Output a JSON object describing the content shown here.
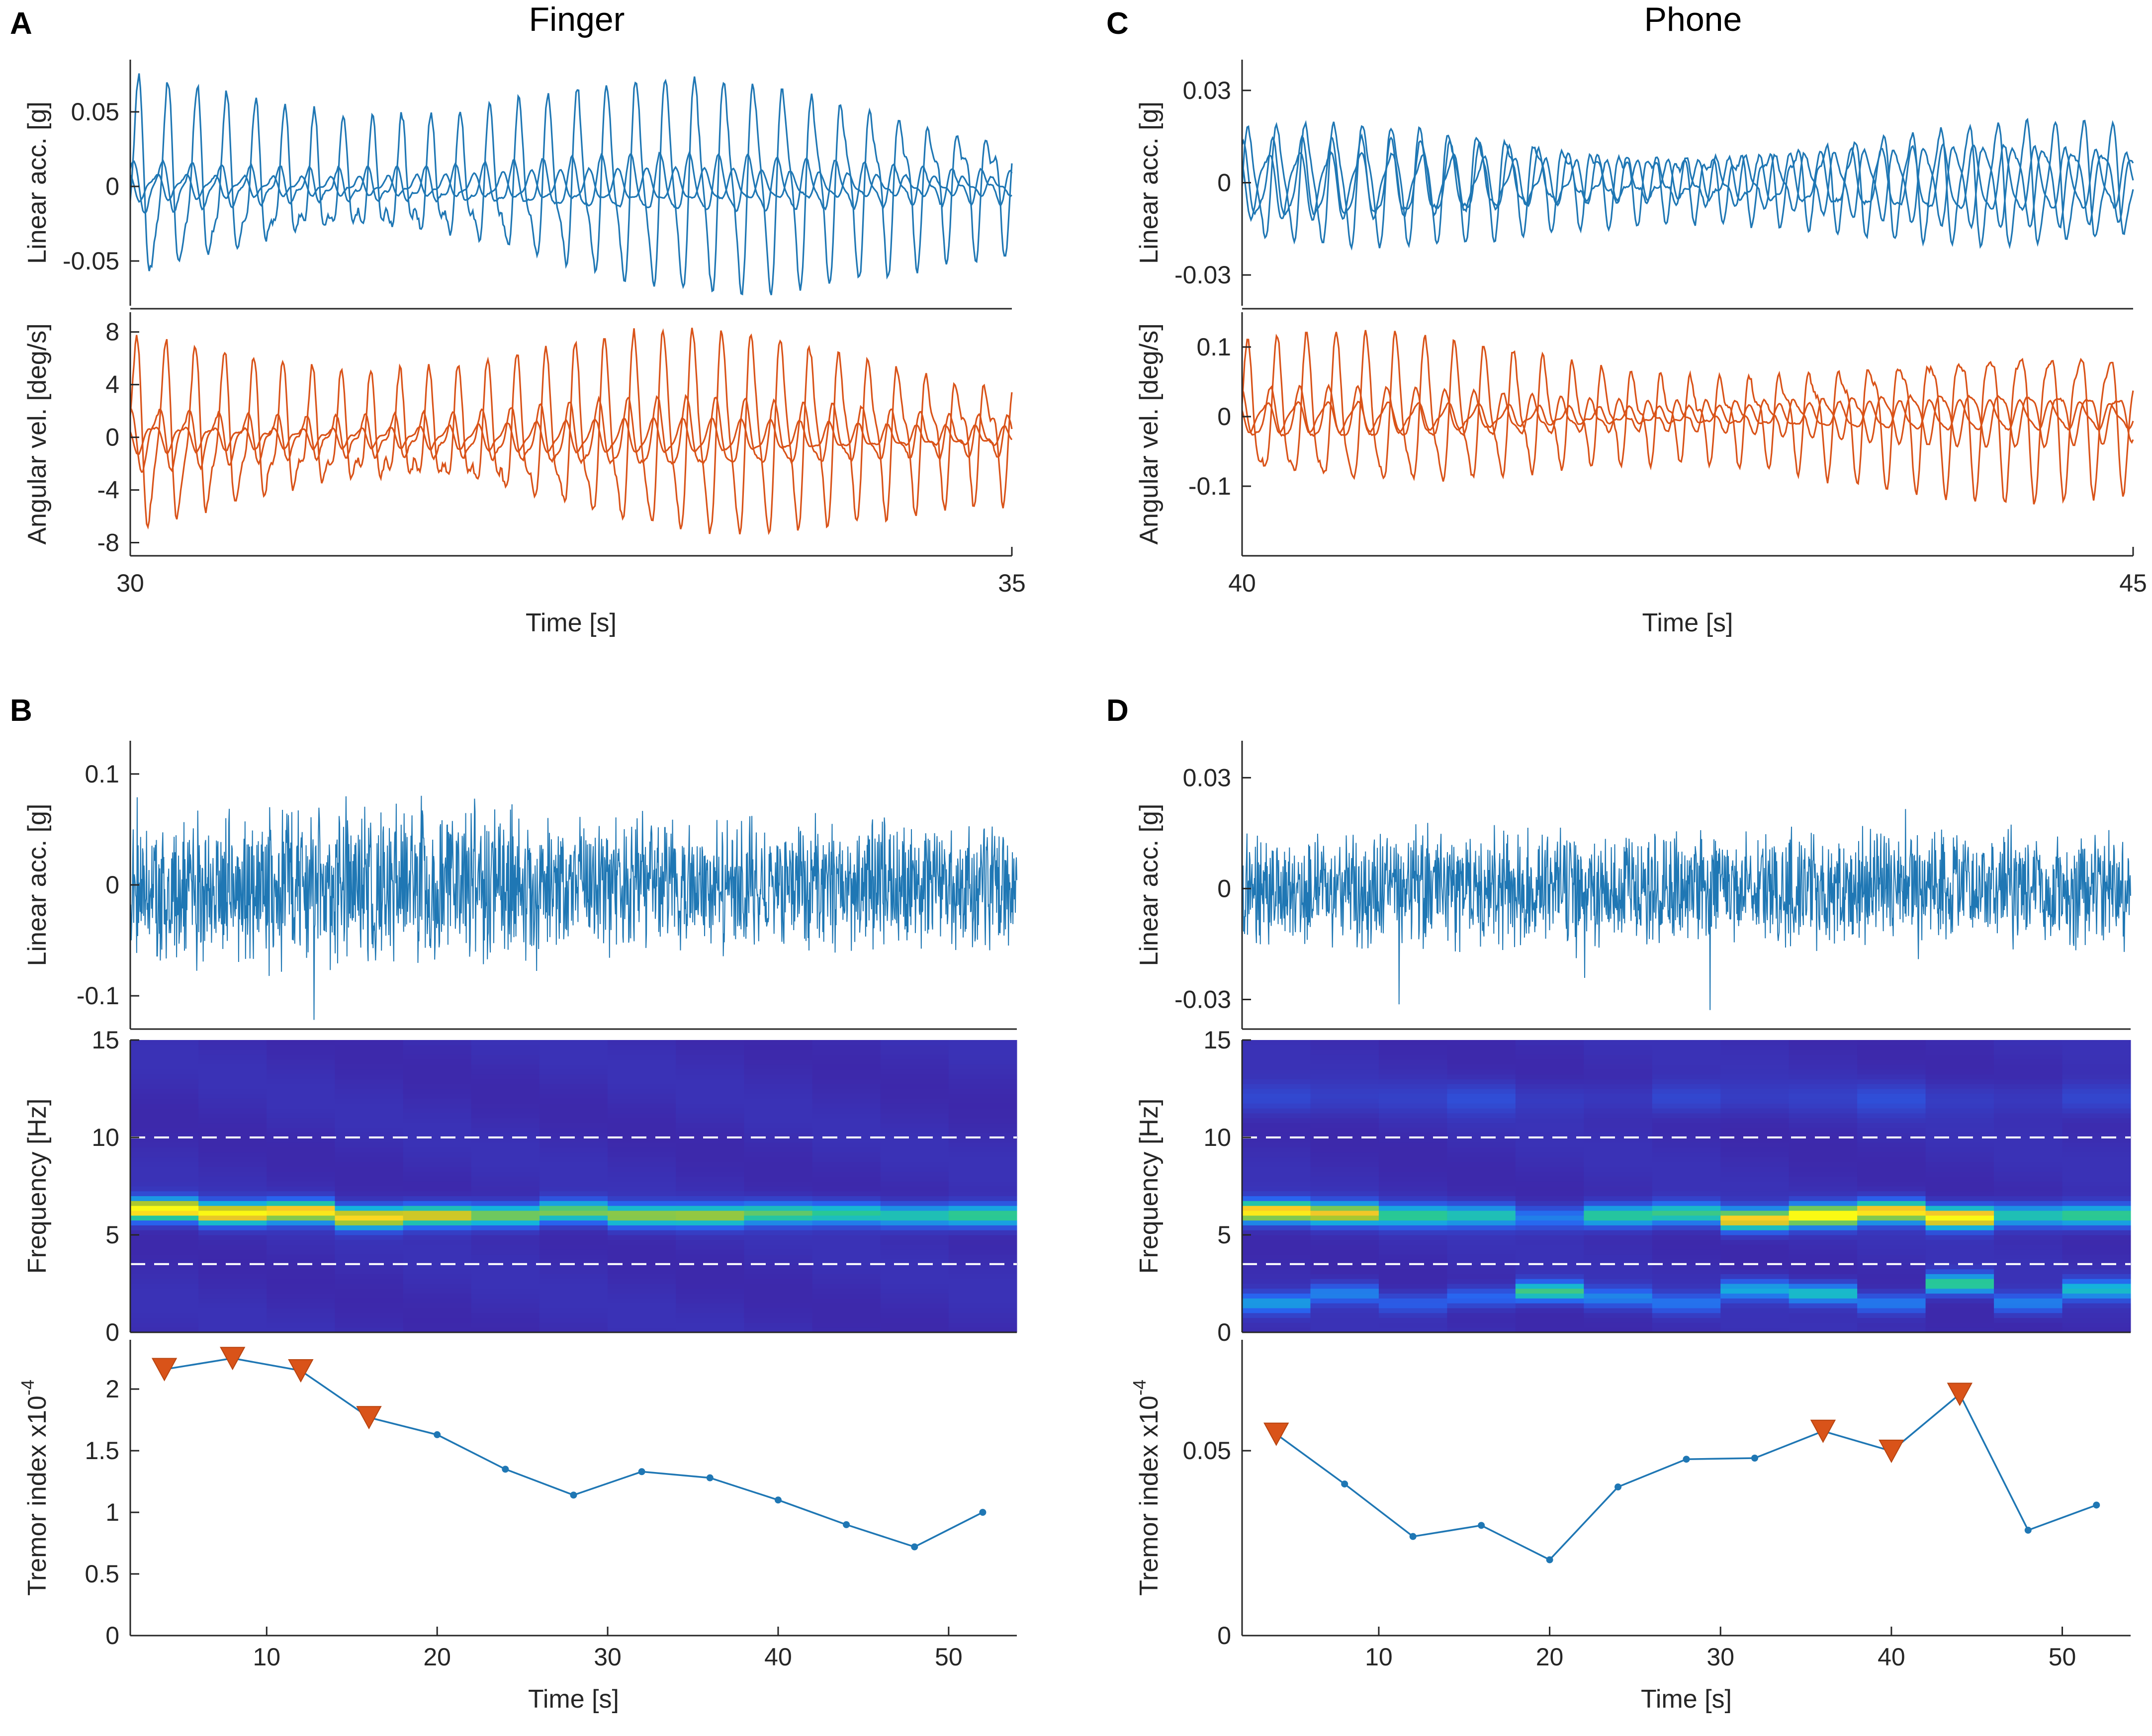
{
  "colors": {
    "blue": "#1f77b4",
    "orange": "#d95319",
    "triangle": "#d95319",
    "axis": "#262626"
  },
  "panels": [
    {
      "letter": "A",
      "title": "Finger"
    },
    {
      "letter": "B",
      "title": ""
    },
    {
      "letter": "C",
      "title": "Phone"
    },
    {
      "letter": "D",
      "title": ""
    }
  ],
  "chart_data": [
    {
      "id": "A_acc",
      "type": "line",
      "panel": "A",
      "ylabel": "Linear acc. [g]",
      "xlim": [
        30,
        35
      ],
      "ylim": [
        -0.08,
        0.085
      ],
      "yticks": [
        {
          "v": 0.05,
          "l": "0.05"
        },
        {
          "v": 0,
          "l": "0"
        },
        {
          "v": -0.05,
          "l": "-0.05"
        }
      ],
      "series": [
        {
          "name": "x",
          "freq_hz": 6.0,
          "amp": 0.065,
          "phase": 0.0
        },
        {
          "name": "y",
          "freq_hz": 6.0,
          "amp": 0.018,
          "phase": 1.3
        },
        {
          "name": "z",
          "freq_hz": 6.1,
          "amp": 0.01,
          "phase": 2.4
        }
      ]
    },
    {
      "id": "A_gyr",
      "type": "line",
      "panel": "A",
      "ylabel": "Angular vel. [deg/s]",
      "xlabel": "Time [s]",
      "xlim": [
        30,
        35
      ],
      "ylim": [
        -9,
        9.5
      ],
      "xticks": [
        {
          "v": 30,
          "l": "30"
        },
        {
          "v": 35,
          "l": "35"
        }
      ],
      "yticks": [
        {
          "v": 8,
          "l": "8"
        },
        {
          "v": 4,
          "l": "4"
        },
        {
          "v": 0,
          "l": "0"
        },
        {
          "v": -4,
          "l": "-4"
        },
        {
          "v": -8,
          "l": "-8"
        }
      ],
      "series": [
        {
          "name": "x",
          "freq_hz": 6.0,
          "amp": 7.0,
          "phase": 0.5
        },
        {
          "name": "y",
          "freq_hz": 6.0,
          "amp": 2.5,
          "phase": 2.0
        },
        {
          "name": "z",
          "freq_hz": 6.0,
          "amp": 1.2,
          "phase": 3.0
        }
      ]
    },
    {
      "id": "B_acc",
      "type": "line",
      "panel": "B",
      "ylabel": "Linear acc. [g]",
      "xlim": [
        2,
        54
      ],
      "ylim": [
        -0.13,
        0.13
      ],
      "yticks": [
        {
          "v": 0.1,
          "l": "0.1"
        },
        {
          "v": 0,
          "l": "0"
        },
        {
          "v": -0.1,
          "l": "-0.1"
        }
      ],
      "series": [
        {
          "name": "acc",
          "amp": 0.07
        }
      ]
    },
    {
      "id": "B_spec",
      "type": "heatmap",
      "panel": "B",
      "ylabel": "Frequency [Hz]",
      "xlim": [
        2,
        54
      ],
      "ylim": [
        0,
        15
      ],
      "yticks": [
        {
          "v": 15,
          "l": "15"
        },
        {
          "v": 10,
          "l": "10"
        },
        {
          "v": 5,
          "l": "5"
        },
        {
          "v": 0,
          "l": "0"
        }
      ],
      "band_lines_hz": [
        3.5,
        10
      ],
      "windows_center_s": [
        4,
        8,
        12,
        16,
        20,
        24,
        28,
        32,
        36,
        40,
        44,
        48,
        52
      ],
      "peak_hz": [
        6.3,
        6.1,
        6.2,
        5.9,
        6.0,
        6.0,
        6.2,
        6.0,
        6.0,
        6.1,
        6.1,
        6.0,
        6.0
      ],
      "peak_intensity": [
        1.0,
        0.95,
        0.92,
        0.88,
        0.82,
        0.7,
        0.68,
        0.7,
        0.7,
        0.62,
        0.58,
        0.55,
        0.62
      ]
    },
    {
      "id": "B_tremor",
      "type": "line",
      "panel": "B",
      "ylabel": "Tremor index x10",
      "ylabel_exp": "-4",
      "xlabel": "Time [s]",
      "xlim": [
        2,
        54
      ],
      "ylim": [
        0,
        2.4
      ],
      "xticks": [
        {
          "v": 10,
          "l": "10"
        },
        {
          "v": 20,
          "l": "20"
        },
        {
          "v": 30,
          "l": "30"
        },
        {
          "v": 40,
          "l": "40"
        },
        {
          "v": 50,
          "l": "50"
        }
      ],
      "yticks": [
        {
          "v": 2,
          "l": "2"
        },
        {
          "v": 1.5,
          "l": "1.5"
        },
        {
          "v": 1,
          "l": "1"
        },
        {
          "v": 0.5,
          "l": "0.5"
        },
        {
          "v": 0,
          "l": "0"
        }
      ],
      "x": [
        4,
        8,
        12,
        16,
        20,
        24,
        28,
        32,
        36,
        40,
        44,
        48,
        52
      ],
      "y": [
        2.16,
        2.25,
        2.15,
        1.77,
        1.63,
        1.35,
        1.14,
        1.33,
        1.28,
        1.1,
        0.9,
        0.72,
        1.0
      ],
      "markers": [
        0,
        1,
        2,
        3
      ]
    },
    {
      "id": "C_acc",
      "type": "line",
      "panel": "C",
      "ylabel": "Linear acc. [g]",
      "xlim": [
        40,
        45
      ],
      "ylim": [
        -0.04,
        0.04
      ],
      "yticks": [
        {
          "v": 0.03,
          "l": "0.03"
        },
        {
          "v": 0,
          "l": "0"
        },
        {
          "v": -0.03,
          "l": "-0.03"
        }
      ],
      "series": [
        {
          "name": "x",
          "freq_hz": 6.2,
          "amp": 0.018,
          "phase": 0.0
        },
        {
          "name": "y",
          "freq_hz": 6.0,
          "amp": 0.012,
          "phase": 1.5
        },
        {
          "name": "z",
          "freq_hz": 5.8,
          "amp": 0.01,
          "phase": 2.7
        }
      ]
    },
    {
      "id": "C_gyr",
      "type": "line",
      "panel": "C",
      "ylabel": "Angular vel. [deg/s]",
      "xlabel": "Time [s]",
      "xlim": [
        40,
        45
      ],
      "ylim": [
        -0.2,
        0.15
      ],
      "xticks": [
        {
          "v": 40,
          "l": "40"
        },
        {
          "v": 45,
          "l": "45"
        }
      ],
      "yticks": [
        {
          "v": 0.1,
          "l": "0.1"
        },
        {
          "v": 0,
          "l": "0"
        },
        {
          "v": -0.1,
          "l": "-0.1"
        }
      ],
      "series": [
        {
          "name": "x",
          "freq_hz": 6.0,
          "amp": 0.1,
          "phase": 0.4
        },
        {
          "name": "y",
          "freq_hz": 6.1,
          "amp": 0.035,
          "phase": 1.8
        },
        {
          "name": "z",
          "freq_hz": 5.9,
          "amp": 0.02,
          "phase": 2.9
        }
      ]
    },
    {
      "id": "D_acc",
      "type": "line",
      "panel": "D",
      "ylabel": "Linear acc. [g]",
      "xlim": [
        2,
        54
      ],
      "ylim": [
        -0.038,
        0.04
      ],
      "yticks": [
        {
          "v": 0.03,
          "l": "0.03"
        },
        {
          "v": 0,
          "l": "0"
        },
        {
          "v": -0.03,
          "l": "-0.03"
        }
      ],
      "series": [
        {
          "name": "acc",
          "amp": 0.015
        }
      ]
    },
    {
      "id": "D_spec",
      "type": "heatmap",
      "panel": "D",
      "ylabel": "Frequency [Hz]",
      "xlim": [
        2,
        54
      ],
      "ylim": [
        0,
        15
      ],
      "yticks": [
        {
          "v": 15,
          "l": "15"
        },
        {
          "v": 10,
          "l": "10"
        },
        {
          "v": 5,
          "l": "5"
        },
        {
          "v": 0,
          "l": "0"
        }
      ],
      "band_lines_hz": [
        3.5,
        10
      ],
      "windows_center_s": [
        4,
        8,
        12,
        16,
        20,
        24,
        28,
        32,
        36,
        40,
        44,
        48,
        52
      ],
      "peak_hz": [
        6.2,
        6.1,
        6.0,
        6.0,
        5.9,
        6.0,
        6.1,
        5.8,
        6.0,
        6.2,
        5.9,
        6.0,
        6.0
      ],
      "peak_intensity": [
        0.95,
        0.82,
        0.58,
        0.52,
        0.3,
        0.6,
        0.6,
        0.88,
        1.0,
        0.92,
        1.0,
        0.55,
        0.62
      ],
      "low_hz": [
        1.5,
        2.0,
        1.5,
        1.8,
        2.1,
        1.8,
        1.5,
        2.2,
        2.0,
        1.5,
        2.5,
        1.5,
        2.2
      ],
      "low_intensity": [
        0.35,
        0.3,
        0.2,
        0.25,
        0.6,
        0.3,
        0.25,
        0.4,
        0.5,
        0.3,
        0.6,
        0.3,
        0.45
      ]
    },
    {
      "id": "D_tremor",
      "type": "line",
      "panel": "D",
      "ylabel": "Tremor index x10",
      "ylabel_exp": "-4",
      "xlabel": "Time [s]",
      "xlim": [
        2,
        54
      ],
      "ylim": [
        0,
        0.08
      ],
      "xticks": [
        {
          "v": 10,
          "l": "10"
        },
        {
          "v": 20,
          "l": "20"
        },
        {
          "v": 30,
          "l": "30"
        },
        {
          "v": 40,
          "l": "40"
        },
        {
          "v": 50,
          "l": "50"
        }
      ],
      "yticks": [
        {
          "v": 0.05,
          "l": "0.05"
        },
        {
          "v": 0,
          "l": "0"
        }
      ],
      "x": [
        4,
        8,
        12,
        16,
        20,
        24,
        28,
        32,
        36,
        40,
        44,
        48,
        52
      ],
      "y": [
        0.0545,
        0.041,
        0.0268,
        0.0298,
        0.0205,
        0.0402,
        0.0477,
        0.048,
        0.0553,
        0.0499,
        0.0653,
        0.0285,
        0.0353
      ],
      "markers": [
        0,
        8,
        9,
        10
      ]
    }
  ]
}
